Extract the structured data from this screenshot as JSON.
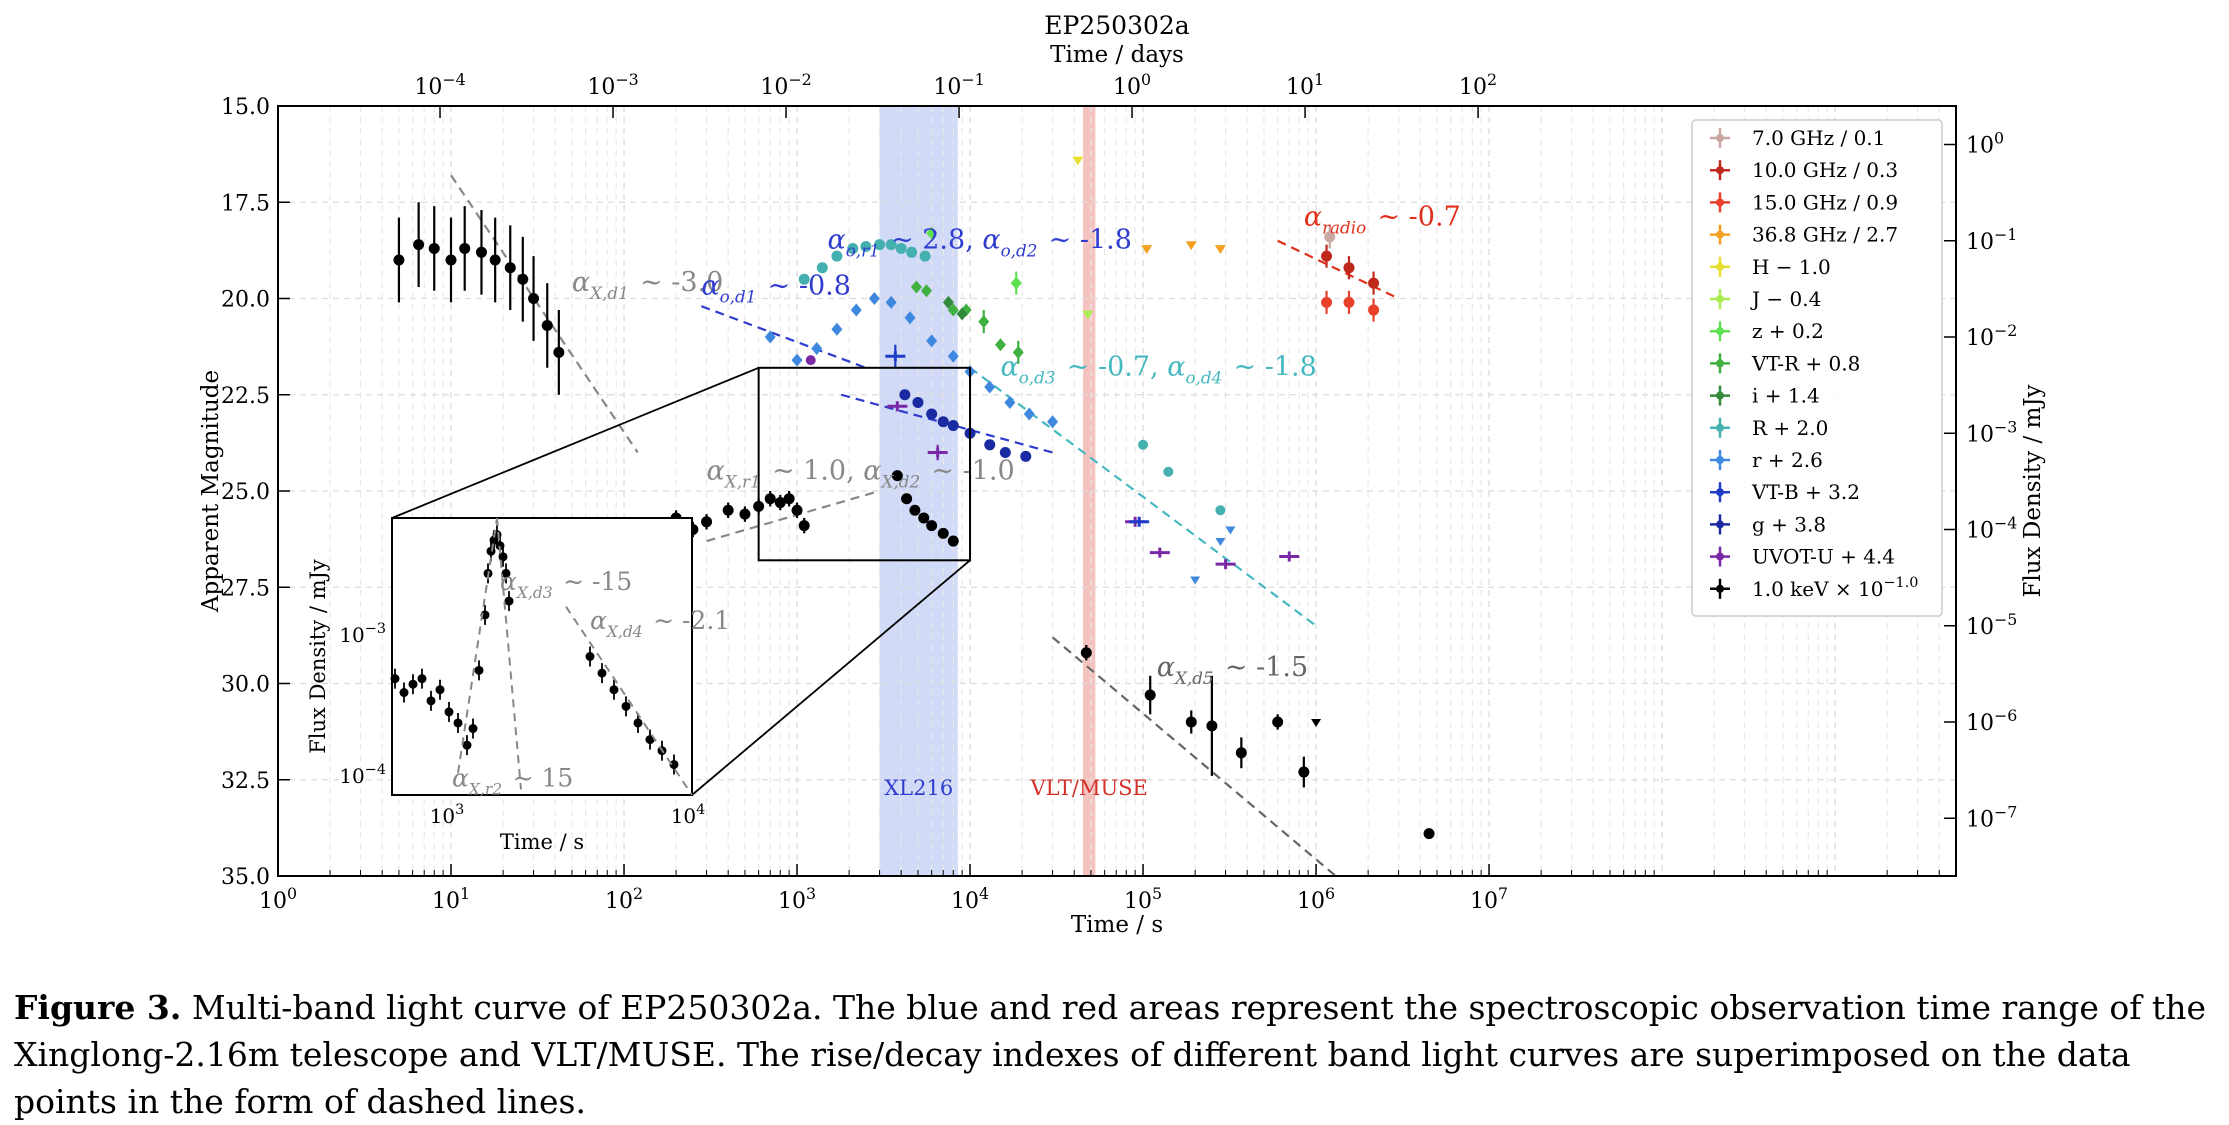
{
  "chart_data": {
    "type": "scatter",
    "title": "EP250302a",
    "xlabel": "Time / s",
    "top_xlabel": "Time / days",
    "ylabel": "Apparent Magnitude",
    "right_ylabel": "Flux Density / mJy",
    "xscale": "log",
    "xlim": [
      1,
      5000000000
    ],
    "ylim": [
      35.0,
      15.0
    ],
    "y_inverted": true,
    "right_ylim_log10": [
      -7.6,
      0.4
    ],
    "grid": true,
    "legend_position": "upper-right",
    "x_ticks": [
      "10^0",
      "10^1",
      "10^2",
      "10^3",
      "10^4",
      "10^5",
      "10^6",
      "10^7"
    ],
    "x_tick_values": [
      1,
      10,
      100,
      1000,
      10000,
      100000,
      1000000,
      10000000
    ],
    "top_ticks": [
      "10^-4",
      "10^-3",
      "10^-2",
      "10^-1",
      "10^0",
      "10^1",
      "10^2"
    ],
    "top_tick_days": [
      0.0001,
      0.001,
      0.01,
      0.1,
      1,
      10,
      100
    ],
    "y_ticks": [
      "15.0",
      "17.5",
      "20.0",
      "22.5",
      "25.0",
      "27.5",
      "30.0",
      "32.5",
      "35.0"
    ],
    "y_tick_values": [
      15.0,
      17.5,
      20.0,
      22.5,
      25.0,
      27.5,
      30.0,
      32.5,
      35.0
    ],
    "right_ticks": [
      "10^0",
      "10^-1",
      "10^-2",
      "10^-3",
      "10^-4",
      "10^-5",
      "10^-6",
      "10^-7"
    ],
    "right_tick_log10": [
      0,
      -1,
      -2,
      -3,
      -4,
      -5,
      -6,
      -7
    ],
    "shaded_regions": [
      {
        "label": "XL216",
        "x_start": 3000,
        "x_end": 8500,
        "color": "#c9d3f5",
        "label_color": "#2f3ccf"
      },
      {
        "label": "VLT/MUSE",
        "x_start": 45000,
        "x_end": 53000,
        "color": "#f2b8b4",
        "label_color": "#d3312a"
      }
    ],
    "series": [
      {
        "name": "7.0 GHz / 0.1",
        "color": "#c8a8a0",
        "marker": "circle",
        "points": [
          [
            1200000,
            18.4
          ]
        ],
        "err": [
          0.3
        ]
      },
      {
        "name": "10.0 GHz / 0.3",
        "color": "#c0281c",
        "marker": "circle",
        "points": [
          [
            1150000,
            18.9
          ],
          [
            1550000,
            19.2
          ],
          [
            2150000,
            19.6
          ]
        ],
        "err": [
          0.3,
          0.3,
          0.3
        ]
      },
      {
        "name": "15.0 GHz / 0.9",
        "color": "#e8402a",
        "marker": "circle",
        "points": [
          [
            1150000,
            20.1
          ],
          [
            1550000,
            20.1
          ],
          [
            2150000,
            20.3
          ]
        ],
        "err": [
          0.3,
          0.3,
          0.3
        ]
      },
      {
        "name": "36.8 GHz / 2.7",
        "color": "#f5a020",
        "marker": "triangle",
        "points": [
          [
            105000,
            18.7
          ],
          [
            190000,
            18.6
          ],
          [
            280000,
            18.7
          ]
        ],
        "err": [
          0,
          0,
          0
        ]
      },
      {
        "name": "H − 1.0",
        "color": "#e8e030",
        "marker": "triangle",
        "points": [
          [
            42000,
            16.4
          ]
        ],
        "err": [
          0
        ]
      },
      {
        "name": "J − 0.4",
        "color": "#a8ee50",
        "marker": "triangle",
        "points": [
          [
            48000,
            20.4
          ]
        ],
        "err": [
          0
        ]
      },
      {
        "name": "z + 0.2",
        "color": "#60e050",
        "marker": "diamond",
        "points": [
          [
            6000,
            18.3
          ],
          [
            18500,
            19.6
          ]
        ],
        "err": [
          0,
          0.3
        ]
      },
      {
        "name": "VT-R + 0.8",
        "color": "#40b040",
        "marker": "diamond",
        "points": [
          [
            4900,
            19.7
          ],
          [
            5600,
            19.8
          ],
          [
            8000,
            20.3
          ],
          [
            9500,
            20.3
          ],
          [
            12000,
            20.6
          ],
          [
            15000,
            21.2
          ],
          [
            19000,
            21.4
          ]
        ],
        "err": [
          0,
          0,
          0,
          0,
          0.3,
          0,
          0.3
        ]
      },
      {
        "name": "i + 1.4",
        "color": "#338a3a",
        "marker": "diamond",
        "points": [
          [
            7500,
            20.1
          ],
          [
            9000,
            20.4
          ]
        ],
        "err": [
          0,
          0
        ]
      },
      {
        "name": "R + 2.0",
        "color": "#45b0b0",
        "marker": "circle",
        "points": [
          [
            1100,
            19.5
          ],
          [
            1400,
            19.2
          ],
          [
            1700,
            18.9
          ],
          [
            2100,
            18.7
          ],
          [
            2500,
            18.65
          ],
          [
            3000,
            18.6
          ],
          [
            3500,
            18.6
          ],
          [
            4000,
            18.7
          ],
          [
            4600,
            18.8
          ],
          [
            5500,
            18.9
          ]
        ],
        "err": [
          0,
          0,
          0,
          0,
          0,
          0,
          0,
          0,
          0,
          0
        ]
      },
      {
        "name": "r + 2.6",
        "color": "#3f88e0",
        "marker": "diamond",
        "points": [
          [
            700,
            21.0
          ],
          [
            1000,
            21.6
          ],
          [
            1300,
            21.3
          ],
          [
            1700,
            20.8
          ],
          [
            2200,
            20.3
          ],
          [
            2800,
            20.0
          ],
          [
            3500,
            20.1
          ],
          [
            4500,
            20.5
          ],
          [
            6000,
            21.1
          ],
          [
            8000,
            21.5
          ],
          [
            10000,
            21.9
          ],
          [
            13000,
            22.3
          ],
          [
            17000,
            22.7
          ],
          [
            22000,
            23.0
          ],
          [
            30000,
            23.2
          ]
        ],
        "err": [
          0,
          0,
          0,
          0,
          0,
          0,
          0,
          0,
          0,
          0,
          0,
          0,
          0,
          0,
          0
        ]
      },
      {
        "name": "VT-B + 3.2",
        "color": "#1f3cc8",
        "marker": "cross",
        "points": [
          [
            3700,
            21.5
          ]
        ],
        "err": [
          0.3
        ]
      },
      {
        "name": "g + 3.8",
        "color": "#1a2aa0",
        "marker": "circle",
        "points": [
          [
            4200,
            22.5
          ],
          [
            5000,
            22.7
          ],
          [
            6000,
            23.0
          ],
          [
            7000,
            23.2
          ],
          [
            8000,
            23.3
          ],
          [
            10000,
            23.5
          ],
          [
            13000,
            23.8
          ],
          [
            16000,
            24.0
          ],
          [
            21000,
            24.1
          ]
        ],
        "err": [
          0,
          0,
          0,
          0,
          0,
          0,
          0,
          0,
          0
        ]
      },
      {
        "name": "UVOT-U + 4.4",
        "color": "#7a28a8",
        "marker": "cross",
        "points": [
          [
            3800,
            22.8
          ],
          [
            6500,
            24.0
          ],
          [
            90000,
            25.8
          ],
          [
            125000,
            26.6
          ],
          [
            300000,
            26.9
          ],
          [
            700000,
            26.7
          ]
        ],
        "err": [
          0,
          0.2,
          0,
          0,
          0,
          0
        ]
      },
      {
        "name": "1.0 keV × 10^−1.0",
        "color": "#000000",
        "marker": "circle",
        "points": [
          [
            5,
            19.0
          ],
          [
            6.5,
            18.6
          ],
          [
            8,
            18.7
          ],
          [
            10,
            19.0
          ],
          [
            12,
            18.7
          ],
          [
            15,
            18.8
          ],
          [
            18,
            19.0
          ],
          [
            22,
            19.2
          ],
          [
            26,
            19.5
          ],
          [
            30,
            20.0
          ],
          [
            36,
            20.7
          ],
          [
            42,
            21.4
          ],
          [
            200,
            25.7
          ],
          [
            250,
            26.0
          ],
          [
            300,
            25.8
          ],
          [
            400,
            25.5
          ],
          [
            500,
            25.6
          ],
          [
            600,
            25.4
          ],
          [
            700,
            25.2
          ],
          [
            800,
            25.3
          ],
          [
            900,
            25.2
          ],
          [
            1000,
            25.5
          ],
          [
            1100,
            25.9
          ],
          [
            3800,
            24.6
          ],
          [
            4300,
            25.2
          ],
          [
            4800,
            25.5
          ],
          [
            5400,
            25.7
          ],
          [
            6000,
            25.9
          ],
          [
            7000,
            26.1
          ],
          [
            8000,
            26.3
          ],
          [
            47000,
            29.2
          ],
          [
            110000,
            30.3
          ],
          [
            190000,
            31.0
          ],
          [
            250000,
            31.1
          ],
          [
            370000,
            31.8
          ],
          [
            600000,
            31.0
          ],
          [
            850000,
            32.3
          ],
          [
            4500000,
            33.9
          ]
        ],
        "err": [
          1.1,
          1.1,
          1.1,
          1.1,
          1.1,
          1.1,
          1.1,
          1.1,
          1.1,
          1.1,
          1.1,
          1.1,
          0.2,
          0.2,
          0.2,
          0.2,
          0.2,
          0.2,
          0.2,
          0.2,
          0.2,
          0.2,
          0.2,
          0.1,
          0.1,
          0.1,
          0.1,
          0.1,
          0.1,
          0.1,
          0.2,
          0.5,
          0.3,
          1.3,
          0.4,
          0.2,
          0.4,
          0
        ]
      }
    ],
    "extra_points": [
      {
        "color": "#3f88e0",
        "marker": "triangle",
        "points": [
          [
            200000,
            27.3
          ],
          [
            280000,
            26.3
          ],
          [
            320000,
            26.0
          ]
        ]
      },
      {
        "color": "#45b0b0",
        "marker": "circle",
        "points": [
          [
            100000,
            23.8
          ],
          [
            140000,
            24.5
          ],
          [
            280000,
            25.5
          ]
        ]
      },
      {
        "color": "#1f3cc8",
        "marker": "cross",
        "points": [
          [
            95000,
            25.8
          ]
        ]
      },
      {
        "color": "#7a28a8",
        "marker": "circle",
        "points": [
          [
            1200,
            21.6
          ]
        ]
      },
      {
        "color": "#000000",
        "marker": "triangle",
        "points": [
          [
            1000000,
            31.0
          ]
        ]
      }
    ],
    "fit_lines": [
      {
        "label": "α_{X,d_1} ~ -3.0",
        "color": "#888888",
        "x": [
          10,
          120
        ],
        "y": [
          16.8,
          24.0
        ],
        "label_x": 50,
        "label_y": 19.8
      },
      {
        "label": "α_{X,r_1} ~ 1.0, α_{X,d_2} ~ -1.0",
        "color": "#888888",
        "x": [
          300,
          3000
        ],
        "y": [
          26.3,
          25.0
        ],
        "label_x": 300,
        "label_y": 24.7
      },
      {
        "label": "α_{X,d_5} ~ -1.5",
        "color": "#666666",
        "x": [
          30000,
          1300000
        ],
        "y": [
          28.8,
          35.0
        ],
        "label_x": 120000,
        "label_y": 29.8
      },
      {
        "label": "α_{o,d_1} ~ -0.8",
        "color": "#2f3ccf",
        "x": [
          280,
          2500
        ],
        "y": [
          20.2,
          21.8
        ],
        "label_x": 280,
        "label_y": 19.9
      },
      {
        "label": "α_{o,r_1} ~ 2.8, α_{o,d_2} ~ -1.8",
        "color": "#2f3ccf",
        "x": [
          1800,
          30000
        ],
        "y": [
          22.5,
          24.0
        ],
        "label_x": 1500,
        "label_y": 18.7
      },
      {
        "label": "α_{o,d_3} ~ -0.7, α_{o,d_4} ~ -1.8",
        "color": "#45b8c0",
        "x": [
          10000,
          1000000
        ],
        "y": [
          21.8,
          28.5
        ],
        "label_x": 15000,
        "label_y": 22.0
      },
      {
        "label": "α_{radio} ~ -0.7",
        "color": "#e0301c",
        "x": [
          600000,
          3000000
        ],
        "y": [
          18.5,
          20.0
        ],
        "label_x": 850000,
        "label_y": 18.1
      }
    ],
    "inset": {
      "xlabel": "Time / s",
      "ylabel": "Flux Density / mJy",
      "x_ticks": [
        "10^3",
        "10^4"
      ],
      "y_ticks": [
        "10^-3",
        "10^-4"
      ],
      "zoom_region_x": [
        600,
        10000
      ],
      "zoom_region_y": [
        21.8,
        26.8
      ],
      "annotations": [
        "α_{X,d_3} ~ -15",
        "α_{X,d_4} ~ -2.1",
        "α_{X,r_2} ~ 15"
      ]
    }
  },
  "caption": {
    "label": "Figure 3.",
    "text": "Multi-band light curve of EP250302a. The blue and red areas represent the spectroscopic observation time range of the Xinglong-2.16m telescope and VLT/MUSE. The rise/decay indexes of different band light curves are superimposed on the data points in the form of dashed lines."
  }
}
